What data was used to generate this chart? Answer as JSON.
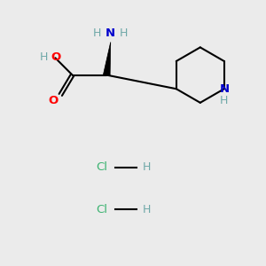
{
  "bg_color": "#ebebeb",
  "bond_color": "#000000",
  "n_color": "#0000cd",
  "o_color": "#ff0000",
  "cl_color": "#3cb371",
  "h_color": "#6fa8a8",
  "figsize": [
    3.0,
    3.0
  ],
  "dpi": 100,
  "xlim": [
    0,
    10
  ],
  "ylim": [
    0,
    10
  ],
  "lw": 1.5,
  "fs": 9.5
}
